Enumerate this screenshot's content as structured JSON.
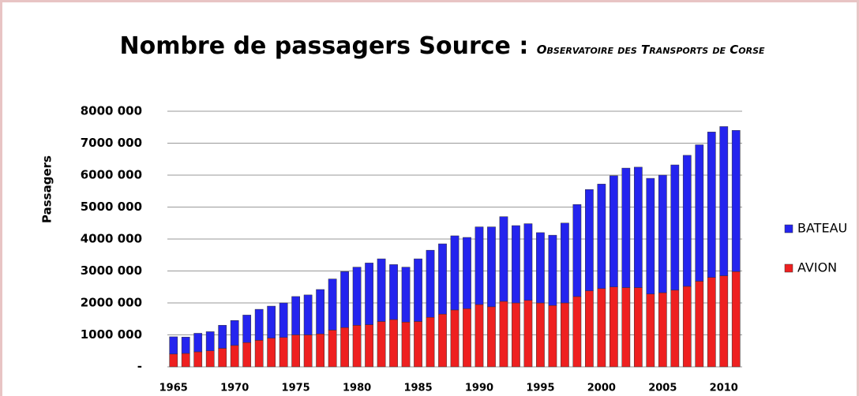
{
  "chart_data": {
    "type": "bar",
    "stacked": true,
    "title": "Nombre de passagers Source :",
    "subtitle": "Observatoire des Transports de Corse",
    "y_label": "Passagers",
    "categories": [
      1965,
      null,
      null,
      null,
      null,
      1970,
      null,
      null,
      null,
      null,
      1975,
      null,
      null,
      null,
      null,
      1980,
      null,
      null,
      null,
      null,
      1985,
      null,
      null,
      null,
      null,
      1990,
      null,
      null,
      null,
      null,
      1995,
      null,
      null,
      null,
      null,
      2000,
      null,
      null,
      null,
      null,
      2005,
      null,
      null,
      null,
      null,
      2010,
      null
    ],
    "series": [
      {
        "name": "AVION",
        "color": "#ee2020",
        "values": [
          400000,
          420000,
          470000,
          500000,
          580000,
          670000,
          760000,
          830000,
          900000,
          920000,
          1000000,
          1000000,
          1030000,
          1150000,
          1230000,
          1300000,
          1320000,
          1420000,
          1480000,
          1400000,
          1420000,
          1550000,
          1650000,
          1780000,
          1820000,
          1950000,
          1880000,
          2050000,
          2000000,
          2080000,
          2000000,
          1920000,
          2000000,
          2200000,
          2380000,
          2450000,
          2500000,
          2480000,
          2480000,
          2280000,
          2320000,
          2400000,
          2520000,
          2680000,
          2800000,
          2850000,
          2980000
        ]
      },
      {
        "name": "BATEAU",
        "color": "#2424ee",
        "values": [
          540000,
          510000,
          580000,
          600000,
          720000,
          780000,
          860000,
          970000,
          1000000,
          1080000,
          1200000,
          1250000,
          1390000,
          1600000,
          1750000,
          1820000,
          1930000,
          1960000,
          1720000,
          1720000,
          1960000,
          2100000,
          2200000,
          2320000,
          2230000,
          2430000,
          2500000,
          2650000,
          2420000,
          2400000,
          2200000,
          2200000,
          2500000,
          2880000,
          3170000,
          3270000,
          3480000,
          3740000,
          3770000,
          3620000,
          3680000,
          3920000,
          4100000,
          4270000,
          4550000,
          4670000,
          4420000
        ]
      }
    ],
    "ylim": [
      0,
      8000000
    ],
    "yticks": [
      {
        "value": 0,
        "label": "-"
      },
      {
        "value": 1000000,
        "label": "1000 000"
      },
      {
        "value": 2000000,
        "label": "2000 000"
      },
      {
        "value": 3000000,
        "label": "3000 000"
      },
      {
        "value": 4000000,
        "label": "4000 000"
      },
      {
        "value": 5000000,
        "label": "5000 000"
      },
      {
        "value": 6000000,
        "label": "6000 000"
      },
      {
        "value": 7000000,
        "label": "7000 000"
      },
      {
        "value": 8000000,
        "label": "8000 000"
      }
    ],
    "grid": true,
    "legend": "right"
  }
}
